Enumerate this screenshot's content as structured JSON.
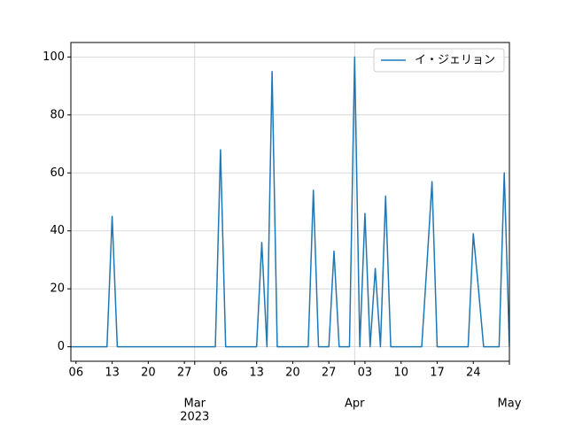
{
  "chart_data": {
    "type": "line",
    "x": [
      "2023-02-05",
      "2023-02-06",
      "2023-02-07",
      "2023-02-08",
      "2023-02-09",
      "2023-02-10",
      "2023-02-11",
      "2023-02-12",
      "2023-02-13",
      "2023-02-14",
      "2023-02-15",
      "2023-02-16",
      "2023-02-17",
      "2023-02-18",
      "2023-02-19",
      "2023-02-20",
      "2023-02-21",
      "2023-02-22",
      "2023-02-23",
      "2023-02-24",
      "2023-02-25",
      "2023-02-26",
      "2023-02-27",
      "2023-02-28",
      "2023-03-01",
      "2023-03-02",
      "2023-03-03",
      "2023-03-04",
      "2023-03-05",
      "2023-03-06",
      "2023-03-07",
      "2023-03-08",
      "2023-03-09",
      "2023-03-10",
      "2023-03-11",
      "2023-03-12",
      "2023-03-13",
      "2023-03-14",
      "2023-03-15",
      "2023-03-16",
      "2023-03-17",
      "2023-03-18",
      "2023-03-19",
      "2023-03-20",
      "2023-03-21",
      "2023-03-22",
      "2023-03-23",
      "2023-03-24",
      "2023-03-25",
      "2023-03-26",
      "2023-03-27",
      "2023-03-28",
      "2023-03-29",
      "2023-03-30",
      "2023-03-31",
      "2023-04-01",
      "2023-04-02",
      "2023-04-03",
      "2023-04-04",
      "2023-04-05",
      "2023-04-06",
      "2023-04-07",
      "2023-04-08",
      "2023-04-09",
      "2023-04-10",
      "2023-04-11",
      "2023-04-12",
      "2023-04-13",
      "2023-04-14",
      "2023-04-15",
      "2023-04-16",
      "2023-04-17",
      "2023-04-18",
      "2023-04-19",
      "2023-04-20",
      "2023-04-21",
      "2023-04-22",
      "2023-04-23",
      "2023-04-24",
      "2023-04-25",
      "2023-04-26",
      "2023-04-27",
      "2023-04-28",
      "2023-04-29",
      "2023-04-30",
      "2023-05-01"
    ],
    "series": [
      {
        "name": "イ・ジェリョン",
        "color": "#1f77b4",
        "values": [
          0,
          0,
          0,
          0,
          0,
          0,
          0,
          0,
          45,
          0,
          0,
          0,
          0,
          0,
          0,
          0,
          0,
          0,
          0,
          0,
          0,
          0,
          0,
          0,
          0,
          0,
          0,
          0,
          0,
          68,
          0,
          0,
          0,
          0,
          0,
          0,
          0,
          36,
          0,
          95,
          0,
          0,
          0,
          0,
          0,
          0,
          0,
          54,
          0,
          0,
          0,
          33,
          0,
          0,
          0,
          100,
          0,
          46,
          0,
          27,
          0,
          52,
          0,
          0,
          0,
          0,
          0,
          0,
          0,
          28,
          57,
          0,
          0,
          0,
          0,
          0,
          0,
          0,
          39,
          20,
          0,
          0,
          0,
          0,
          60,
          0
        ]
      }
    ],
    "xlim": [
      "2023-02-05",
      "2023-05-01"
    ],
    "xticks": [
      {
        "value": "2023-03-01",
        "label": "Mar"
      },
      {
        "value": "2023-04-01",
        "label": "Apr"
      },
      {
        "value": "2023-05-01",
        "label": "May"
      }
    ],
    "xticks_minor": [
      {
        "value": "2023-02-06",
        "label": "06"
      },
      {
        "value": "2023-02-13",
        "label": "13"
      },
      {
        "value": "2023-02-20",
        "label": "20"
      },
      {
        "value": "2023-02-27",
        "label": "27"
      },
      {
        "value": "2023-03-06",
        "label": "06"
      },
      {
        "value": "2023-03-13",
        "label": "13"
      },
      {
        "value": "2023-03-20",
        "label": "20"
      },
      {
        "value": "2023-03-27",
        "label": "27"
      },
      {
        "value": "2023-04-03",
        "label": "03"
      },
      {
        "value": "2023-04-10",
        "label": "10"
      },
      {
        "value": "2023-04-17",
        "label": "17"
      },
      {
        "value": "2023-04-24",
        "label": "24"
      }
    ],
    "x_offset_label": "2023",
    "ylim": [
      -5,
      105
    ],
    "yticks": [
      0,
      20,
      40,
      60,
      80,
      100
    ],
    "grid": true,
    "legend": "upper right"
  }
}
